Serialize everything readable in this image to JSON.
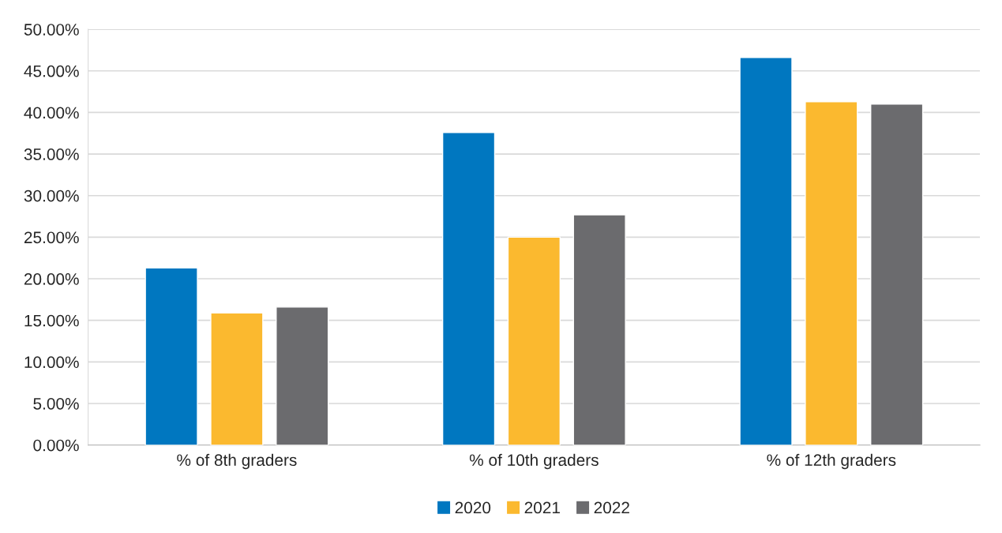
{
  "chart_data": {
    "type": "bar",
    "categories": [
      "% of 8th graders",
      "% of 10th graders",
      "% of 12th graders"
    ],
    "series": [
      {
        "name": "2020",
        "color": "#0077c0",
        "values": [
          21.3,
          37.6,
          46.6
        ]
      },
      {
        "name": "2021",
        "color": "#fbb92f",
        "values": [
          15.9,
          25.0,
          41.3
        ]
      },
      {
        "name": "2022",
        "color": "#6b6b6e",
        "values": [
          16.6,
          27.7,
          41.0
        ]
      }
    ],
    "ylim": [
      0,
      50
    ],
    "yticks": [
      {
        "value": 0,
        "label": "0.00%"
      },
      {
        "value": 5,
        "label": "5.00%"
      },
      {
        "value": 10,
        "label": "10.00%"
      },
      {
        "value": 15,
        "label": "15.00%"
      },
      {
        "value": 20,
        "label": "20.00%"
      },
      {
        "value": 25,
        "label": "25.00%"
      },
      {
        "value": 30,
        "label": "30.00%"
      },
      {
        "value": 35,
        "label": "35.00%"
      },
      {
        "value": 40,
        "label": "40.00%"
      },
      {
        "value": 45,
        "label": "45.00%"
      },
      {
        "value": 50,
        "label": "50.00%"
      }
    ],
    "grid": "y",
    "legend": "bottom"
  }
}
